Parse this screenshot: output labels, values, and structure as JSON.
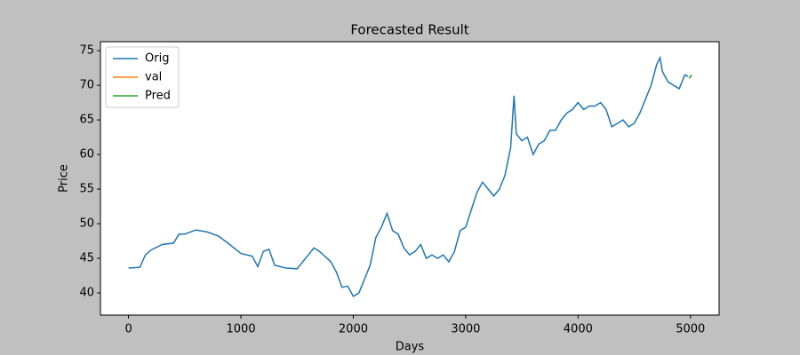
{
  "chart_data": {
    "type": "line",
    "title": "Forecasted Result",
    "x_label": "Days",
    "y_label": "Price",
    "xlim": [
      -250,
      5255
    ],
    "ylim": [
      36.8,
      76.3
    ],
    "xticks": [
      0,
      1000,
      2000,
      3000,
      4000,
      5000
    ],
    "yticks": [
      40,
      45,
      50,
      55,
      60,
      65,
      70,
      75
    ],
    "legend": "upper left",
    "series": [
      {
        "name": "Orig",
        "color": "#1f77b4",
        "x": [
          0,
          100,
          150,
          200,
          300,
          400,
          450,
          500,
          600,
          700,
          800,
          900,
          1000,
          1100,
          1150,
          1200,
          1250,
          1300,
          1400,
          1500,
          1600,
          1650,
          1700,
          1800,
          1850,
          1900,
          1950,
          2000,
          2050,
          2100,
          2150,
          2200,
          2250,
          2300,
          2350,
          2400,
          2450,
          2500,
          2550,
          2600,
          2650,
          2700,
          2750,
          2800,
          2850,
          2900,
          2950,
          3000,
          3050,
          3100,
          3150,
          3200,
          3250,
          3300,
          3350,
          3400,
          3430,
          3450,
          3500,
          3550,
          3600,
          3650,
          3700,
          3750,
          3800,
          3850,
          3900,
          3950,
          4000,
          4050,
          4100,
          4150,
          4200,
          4250,
          4300,
          4350,
          4400,
          4450,
          4500,
          4550,
          4600,
          4650,
          4700,
          4730,
          4750,
          4800,
          4850,
          4900,
          4950,
          4980
        ],
        "values": [
          43.6,
          43.7,
          45.5,
          46.2,
          47,
          47.2,
          48.5,
          48.5,
          49.1,
          48.8,
          48.2,
          47,
          45.7,
          45.3,
          43.8,
          46,
          46.3,
          44,
          43.6,
          43.5,
          45.5,
          46.5,
          46,
          44.5,
          43,
          40.8,
          41,
          39.5,
          40,
          42,
          44,
          48,
          49.5,
          51.5,
          49,
          48.5,
          46.5,
          45.5,
          46,
          47,
          45,
          45.5,
          45,
          45.5,
          44.5,
          46,
          49,
          49.5,
          52,
          54.5,
          56,
          55,
          54,
          55,
          57,
          61,
          68.5,
          63,
          62,
          62.5,
          60,
          61.5,
          62,
          63.5,
          63.5,
          65,
          66,
          66.5,
          67.5,
          66.5,
          67,
          67,
          67.5,
          66.5,
          64,
          64.5,
          65,
          64,
          64.5,
          66,
          68,
          70,
          73,
          74,
          72,
          70.5,
          70,
          69.5,
          71.5,
          71.3
        ]
      },
      {
        "name": "val",
        "color": "#ff7f0e",
        "x": [
          4990,
          5000,
          5010
        ],
        "values": [
          71,
          71.3,
          71.5
        ]
      },
      {
        "name": "Pred",
        "color": "#2ca02c",
        "x": [
          4990,
          5000,
          5010
        ],
        "values": [
          71,
          71.3,
          71.5
        ]
      }
    ]
  }
}
